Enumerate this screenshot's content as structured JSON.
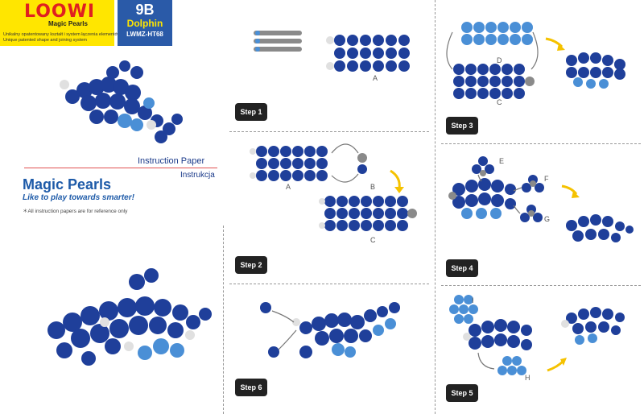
{
  "header": {
    "logo": "LOOWI",
    "logo_sub": "Magic Pearls",
    "tagline_pl": "Unikalny opatentowany kształt i system łączenia elementów",
    "tagline_en": "Unique patented shape and joining system",
    "code": "9B",
    "model": "Dolphin",
    "sku": "LWMZ-HT68"
  },
  "intro": {
    "instruction_en": "Instruction Paper",
    "instruction_pl": "Instrukcja",
    "brand": "Magic Pearls",
    "slogan": "Like to play towards smarter!",
    "note": "＊All instruction papers are for reference only"
  },
  "steps": [
    {
      "label": "Step 1",
      "parts": [
        "A"
      ]
    },
    {
      "label": "Step 2",
      "parts": [
        "A",
        "B",
        "C"
      ]
    },
    {
      "label": "Step 3",
      "parts": [
        "D",
        "C"
      ]
    },
    {
      "label": "Step 4",
      "parts": [
        "E",
        "F",
        "G"
      ]
    },
    {
      "label": "Step 5",
      "parts": [
        "I",
        "H"
      ]
    },
    {
      "label": "Step 6",
      "parts": []
    }
  ],
  "colors": {
    "dark_blue": "#1f3f9a",
    "light_blue": "#4a8fd6",
    "white_pearl": "#e0e0e0",
    "grey_pearl": "#8a8a8a",
    "arrow_yellow": "#f5c200"
  }
}
